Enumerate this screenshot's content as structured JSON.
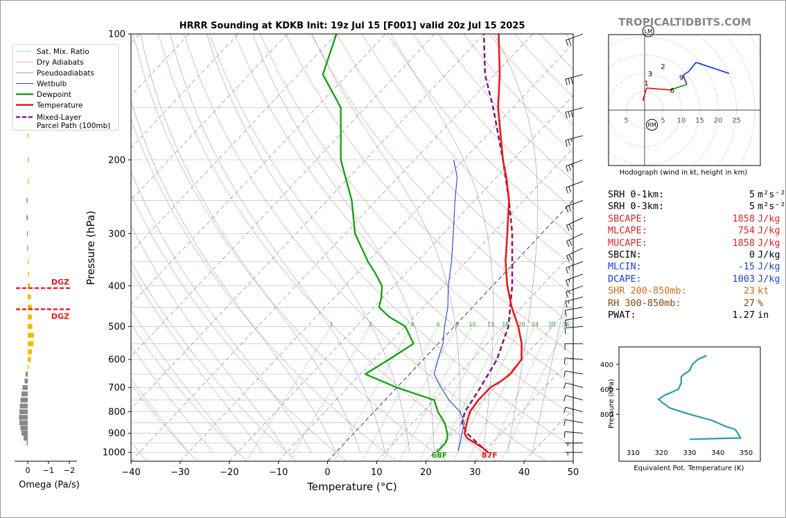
{
  "site": "TROPICALTIDBITS.COM",
  "chart_data": {
    "type": "skew-t",
    "title": "HRRR Sounding at KDKB Init: 19z Jul 15 [F001] valid 20z Jul 15 2025",
    "xlabel": "Temperature (°C)",
    "ylabel": "Pressure (hPa)",
    "xlim": [
      -40,
      50
    ],
    "ylim": [
      1050,
      100
    ],
    "x_ticks": [
      "−40",
      "−30",
      "−20",
      "−10",
      "0",
      "10",
      "20",
      "30",
      "40",
      "50"
    ],
    "y_ticks": [
      "100",
      "200",
      "300",
      "400",
      "500",
      "600",
      "700",
      "800",
      "900",
      "1000"
    ],
    "legend": [
      "Sat. Mix. Ratio",
      "Dry Adiabats",
      "Pseudoadiabats",
      "Wetbulb",
      "Dewpoint",
      "Temperature",
      "Mixed-Layer\nParcel Path (100mb)"
    ],
    "mixing_ratio_labels": [
      "1",
      "2",
      "4",
      "6",
      "8",
      "10",
      "13",
      "16",
      "20",
      "24",
      "30",
      "36"
    ],
    "temperature": [
      [
        1000,
        31
      ],
      [
        975,
        29
      ],
      [
        950,
        26.5
      ],
      [
        925,
        24
      ],
      [
        900,
        22.5
      ],
      [
        850,
        21
      ],
      [
        800,
        19.5
      ],
      [
        750,
        19
      ],
      [
        700,
        19
      ],
      [
        675,
        20
      ],
      [
        650,
        20.5
      ],
      [
        600,
        20
      ],
      [
        550,
        17
      ],
      [
        500,
        13
      ],
      [
        450,
        8
      ],
      [
        400,
        3
      ],
      [
        350,
        -2
      ],
      [
        300,
        -7
      ],
      [
        250,
        -13
      ],
      [
        220,
        -18
      ],
      [
        200,
        -22
      ],
      [
        150,
        -33
      ],
      [
        125,
        -39
      ],
      [
        100,
        -47
      ]
    ],
    "dewpoint": [
      [
        1000,
        20.5
      ],
      [
        975,
        20.5
      ],
      [
        950,
        20.5
      ],
      [
        925,
        20
      ],
      [
        900,
        19
      ],
      [
        850,
        16.5
      ],
      [
        800,
        13
      ],
      [
        750,
        10
      ],
      [
        700,
        0
      ],
      [
        650,
        -9
      ],
      [
        600,
        -7
      ],
      [
        550,
        -5
      ],
      [
        500,
        -10
      ],
      [
        475,
        -15
      ],
      [
        450,
        -19
      ],
      [
        425,
        -20.5
      ],
      [
        400,
        -22.5
      ],
      [
        375,
        -26
      ],
      [
        350,
        -30
      ],
      [
        300,
        -38
      ],
      [
        250,
        -45
      ],
      [
        200,
        -55
      ],
      [
        150,
        -65
      ],
      [
        125,
        -75
      ],
      [
        100,
        -80
      ]
    ],
    "wetbulb": [
      [
        990,
        24.5
      ],
      [
        950,
        23.5
      ],
      [
        900,
        22
      ],
      [
        850,
        20.5
      ],
      [
        800,
        17.5
      ],
      [
        750,
        13
      ],
      [
        700,
        9
      ],
      [
        650,
        5
      ],
      [
        600,
        3
      ],
      [
        550,
        1
      ],
      [
        500,
        -2
      ],
      [
        450,
        -5
      ],
      [
        400,
        -9
      ],
      [
        350,
        -13
      ],
      [
        300,
        -18
      ],
      [
        250,
        -24
      ],
      [
        220,
        -28
      ],
      [
        200,
        -32
      ]
    ],
    "parcel": [
      [
        1000,
        31
      ],
      [
        950,
        27
      ],
      [
        900,
        23
      ],
      [
        850,
        20
      ],
      [
        800,
        18.5
      ],
      [
        700,
        17
      ],
      [
        600,
        15
      ],
      [
        500,
        11
      ],
      [
        400,
        4
      ],
      [
        300,
        -6
      ],
      [
        250,
        -13
      ],
      [
        200,
        -22
      ],
      [
        150,
        -34
      ],
      [
        125,
        -42
      ],
      [
        100,
        -50
      ]
    ],
    "surface_labels": {
      "dewpoint": "68F",
      "temperature": "87F"
    },
    "dgz_label": "DGZ",
    "dgz_levels": [
      405,
      455
    ],
    "wind_barbs": [
      {
        "p": 100,
        "spd": 20,
        "dir": 250
      },
      {
        "p": 125,
        "spd": 30,
        "dir": 255
      },
      {
        "p": 150,
        "spd": 30,
        "dir": 255
      },
      {
        "p": 175,
        "spd": 25,
        "dir": 255
      },
      {
        "p": 200,
        "spd": 25,
        "dir": 250
      },
      {
        "p": 225,
        "spd": 20,
        "dir": 250
      },
      {
        "p": 250,
        "spd": 20,
        "dir": 250
      },
      {
        "p": 275,
        "spd": 20,
        "dir": 245
      },
      {
        "p": 300,
        "spd": 20,
        "dir": 245
      },
      {
        "p": 325,
        "spd": 20,
        "dir": 245
      },
      {
        "p": 350,
        "spd": 15,
        "dir": 250
      },
      {
        "p": 375,
        "spd": 15,
        "dir": 250
      },
      {
        "p": 400,
        "spd": 15,
        "dir": 250
      },
      {
        "p": 425,
        "spd": 15,
        "dir": 255
      },
      {
        "p": 450,
        "spd": 10,
        "dir": 260
      },
      {
        "p": 475,
        "spd": 10,
        "dir": 260
      },
      {
        "p": 500,
        "spd": 10,
        "dir": 265
      },
      {
        "p": 550,
        "spd": 10,
        "dir": 270
      },
      {
        "p": 600,
        "spd": 10,
        "dir": 275
      },
      {
        "p": 650,
        "spd": 10,
        "dir": 280
      },
      {
        "p": 700,
        "spd": 10,
        "dir": 285
      },
      {
        "p": 750,
        "spd": 10,
        "dir": 285
      },
      {
        "p": 800,
        "spd": 10,
        "dir": 285
      },
      {
        "p": 850,
        "spd": 10,
        "dir": 280
      },
      {
        "p": 900,
        "spd": 10,
        "dir": 275
      },
      {
        "p": 950,
        "spd": 5,
        "dir": 270
      },
      {
        "p": 1000,
        "spd": 5,
        "dir": 270
      }
    ],
    "omega": {
      "xlabel": "Omega (Pa/s)",
      "x_ticks": [
        "0",
        "−1",
        "−2"
      ],
      "xlim": [
        1,
        -2
      ],
      "dgz_label": "DGZ",
      "values": [
        [
          150,
          0.0
        ],
        [
          175,
          -0.03
        ],
        [
          200,
          -0.05
        ],
        [
          225,
          0.0
        ],
        [
          250,
          0.05
        ],
        [
          275,
          0.06
        ],
        [
          300,
          0.03
        ],
        [
          325,
          0.02
        ],
        [
          350,
          -0.02
        ],
        [
          375,
          -0.05
        ],
        [
          400,
          -0.1
        ],
        [
          425,
          -0.15
        ],
        [
          450,
          -0.2
        ],
        [
          475,
          -0.2
        ],
        [
          500,
          -0.22
        ],
        [
          525,
          -0.3
        ],
        [
          550,
          -0.28
        ],
        [
          575,
          -0.2
        ],
        [
          600,
          -0.15
        ],
        [
          625,
          -0.05
        ],
        [
          650,
          0.1
        ],
        [
          675,
          0.15
        ],
        [
          700,
          0.25
        ],
        [
          725,
          0.3
        ],
        [
          750,
          0.35
        ],
        [
          775,
          0.38
        ],
        [
          800,
          0.4
        ],
        [
          825,
          0.42
        ],
        [
          850,
          0.4
        ],
        [
          875,
          0.35
        ],
        [
          900,
          0.3
        ],
        [
          925,
          0.2
        ],
        [
          950,
          0.05
        ]
      ]
    },
    "hodograph": {
      "caption": "Hodograph (wind in kt, height in km)",
      "ring_labels": [
        "5",
        "5",
        "10",
        "15",
        "20",
        "25"
      ],
      "u": [
        [
          -0.5,
          2.5
        ],
        [
          0.5,
          6.0
        ],
        [
          7.0,
          5.5
        ],
        [
          11.5,
          7.0
        ],
        [
          10.5,
          9.5
        ],
        [
          12.0,
          10.5
        ],
        [
          14.0,
          13.0
        ],
        [
          23.0,
          10.0
        ]
      ],
      "height_labels": [
        {
          "k": "1",
          "u": 0.5,
          "v": 7.5
        },
        {
          "k": "2",
          "u": 5.0,
          "v": 12.0
        },
        {
          "k": "3",
          "u": 1.5,
          "v": 10.0
        },
        {
          "k": "6",
          "u": 7.5,
          "v": 5.5
        },
        {
          "k": "9",
          "u": 10.0,
          "v": 9.0
        }
      ],
      "storm_motion": {
        "lm": {
          "label": "LM",
          "u": 1.0,
          "v": 21.5
        },
        "rm": {
          "label": "RM",
          "u": 2.0,
          "v": -4.0
        }
      }
    },
    "theta_e": {
      "ylabel": "Pressure (hPa)",
      "xlabel": "Equivalent Pot. Temperature (K)",
      "x_ticks": [
        "310",
        "320",
        "330",
        "340",
        "350"
      ],
      "y_ticks": [
        "400",
        "600",
        "800"
      ],
      "profile": [
        [
          330,
          1000
        ],
        [
          348,
          990
        ],
        [
          347,
          950
        ],
        [
          346,
          920
        ],
        [
          343,
          900
        ],
        [
          338,
          850
        ],
        [
          330,
          800
        ],
        [
          323,
          750
        ],
        [
          320,
          700
        ],
        [
          319,
          680
        ],
        [
          321,
          650
        ],
        [
          324,
          620
        ],
        [
          326,
          600
        ],
        [
          327,
          550
        ],
        [
          327,
          500
        ],
        [
          328,
          480
        ],
        [
          330,
          450
        ],
        [
          331,
          400
        ],
        [
          333,
          360
        ],
        [
          336,
          330
        ]
      ]
    }
  },
  "stats": [
    {
      "label": "SRH 0-1km:",
      "value": "5",
      "unit": "m²s⁻²",
      "color": "#000000"
    },
    {
      "label": "SRH 0-3km:",
      "value": "5",
      "unit": "m²s⁻²",
      "color": "#000000"
    },
    {
      "label": "SBCAPE:",
      "value": "1858",
      "unit": "J/kg",
      "color": "#d62728"
    },
    {
      "label": "MLCAPE:",
      "value": "754",
      "unit": "J/kg",
      "color": "#d62728"
    },
    {
      "label": "MUCAPE:",
      "value": "1858",
      "unit": "J/kg",
      "color": "#d62728"
    },
    {
      "label": "SBCIN:",
      "value": "0",
      "unit": "J/kg",
      "color": "#000000"
    },
    {
      "label": "MLCIN:",
      "value": "-15",
      "unit": "J/kg",
      "color": "#1f3fd6"
    },
    {
      "label": "DCAPE:",
      "value": "1003",
      "unit": "J/kg",
      "color": "#1f3fd6"
    },
    {
      "label": "SHR 200-850mb:",
      "value": "23",
      "unit": "kt",
      "color": "#d2691e"
    },
    {
      "label": "RH 300-850mb:",
      "value": "27",
      "unit": "%",
      "color": "#7a4a10"
    },
    {
      "label": "PWAT:",
      "value": "1.27",
      "unit": "in",
      "color": "#000000"
    }
  ]
}
